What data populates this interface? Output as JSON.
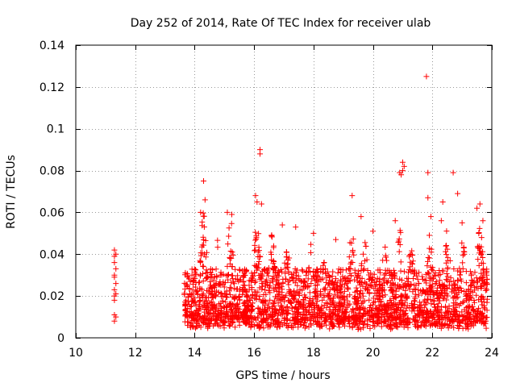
{
  "chart_data": {
    "type": "scatter",
    "title": "Day 252 of 2014, Rate Of TEC Index for receiver ulab",
    "xlabel": "GPS time / hours",
    "ylabel": "ROTI / TECUs",
    "xlim": [
      10,
      24
    ],
    "ylim": [
      0,
      0.14
    ],
    "x_ticks": [
      10,
      12,
      14,
      16,
      18,
      20,
      22,
      24
    ],
    "x_tick_labels": [
      "10",
      "12",
      "14",
      "16",
      "18",
      "20",
      "22",
      "24"
    ],
    "y_ticks": [
      0,
      0.02,
      0.04,
      0.06,
      0.08,
      0.1,
      0.12,
      0.14
    ],
    "y_tick_labels": [
      "0",
      "0.02",
      "0.04",
      "0.06",
      "0.08",
      "0.1",
      "0.12",
      "0.14"
    ],
    "grid": true,
    "marker": "+",
    "color": "#ff0000",
    "series": [
      {
        "name": "ROTI",
        "points": [
          [
            11.3,
            0.008
          ],
          [
            11.3,
            0.011
          ],
          [
            11.3,
            0.018
          ],
          [
            11.3,
            0.02
          ],
          [
            11.3,
            0.023
          ],
          [
            11.3,
            0.029
          ],
          [
            11.3,
            0.03
          ],
          [
            11.3,
            0.036
          ],
          [
            11.3,
            0.039
          ],
          [
            11.3,
            0.042
          ],
          [
            11.35,
            0.01
          ],
          [
            11.35,
            0.021
          ],
          [
            11.35,
            0.026
          ],
          [
            11.35,
            0.033
          ],
          [
            11.35,
            0.04
          ],
          [
            14.3,
            0.075
          ],
          [
            16.05,
            0.068
          ],
          [
            16.2,
            0.088
          ],
          [
            16.2,
            0.09
          ],
          [
            16.25,
            0.064
          ],
          [
            16.1,
            0.065
          ],
          [
            19.3,
            0.068
          ],
          [
            20.95,
            0.078
          ],
          [
            21.0,
            0.08
          ],
          [
            21.05,
            0.082
          ],
          [
            21.0,
            0.084
          ],
          [
            20.9,
            0.079
          ],
          [
            21.8,
            0.125
          ],
          [
            21.85,
            0.079
          ],
          [
            21.85,
            0.067
          ],
          [
            22.7,
            0.079
          ],
          [
            22.85,
            0.069
          ],
          [
            22.35,
            0.065
          ],
          [
            23.6,
            0.064
          ],
          [
            23.5,
            0.062
          ],
          [
            14.2,
            0.06
          ],
          [
            14.35,
            0.066
          ],
          [
            15.1,
            0.06
          ],
          [
            15.25,
            0.059
          ],
          [
            18.0,
            0.05
          ],
          [
            19.6,
            0.058
          ],
          [
            20.75,
            0.056
          ],
          [
            21.95,
            0.058
          ],
          [
            22.3,
            0.056
          ],
          [
            23.0,
            0.055
          ],
          [
            23.7,
            0.056
          ],
          [
            17.4,
            0.053
          ],
          [
            16.95,
            0.054
          ],
          [
            20.0,
            0.051
          ],
          [
            18.75,
            0.047
          ]
        ]
      }
    ]
  }
}
